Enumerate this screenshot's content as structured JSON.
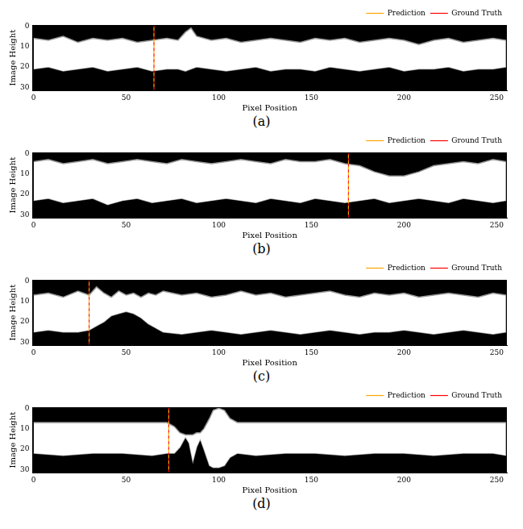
{
  "chart_data": [
    {
      "type": "band_image",
      "caption": "(a)",
      "x_label": "Pixel Position",
      "y_label": "Image Height",
      "color": "#ffffff",
      "legend": "top",
      "grid": false,
      "xlim": [
        -0.5,
        255.5
      ],
      "xticks": [
        0,
        50,
        100,
        150,
        200,
        250
      ],
      "ylim": [
        31.5,
        -0.5
      ],
      "yticks": [
        0,
        10,
        20,
        30
      ],
      "x": [
        0,
        8,
        16,
        24,
        32,
        40,
        48,
        56,
        64,
        72,
        78,
        82,
        85,
        88,
        96,
        104,
        112,
        120,
        128,
        136,
        144,
        152,
        160,
        168,
        176,
        184,
        192,
        200,
        208,
        216,
        224,
        232,
        240,
        248,
        255
      ],
      "band_top": [
        6,
        7,
        5,
        8,
        6,
        7,
        6,
        8,
        7,
        6,
        7,
        3,
        1,
        5,
        7,
        6,
        8,
        7,
        6,
        7,
        8,
        6,
        7,
        6,
        8,
        7,
        6,
        7,
        9,
        7,
        6,
        8,
        7,
        6,
        7
      ],
      "band_bottom": [
        21,
        20,
        22,
        21,
        20,
        22,
        21,
        20,
        22,
        21,
        21,
        22,
        21,
        20,
        21,
        22,
        21,
        20,
        22,
        21,
        21,
        22,
        20,
        21,
        22,
        21,
        20,
        22,
        21,
        21,
        20,
        22,
        21,
        21,
        20
      ],
      "vlines": [
        {
          "name": "Ground Truth",
          "color": "#ff0000",
          "line_style": "dashed",
          "x": 65
        },
        {
          "name": "Prediction",
          "color": "#ffa500",
          "line_style": "dashed",
          "x": 65
        }
      ]
    },
    {
      "type": "band_image",
      "caption": "(b)",
      "x_label": "Pixel Position",
      "y_label": "Image Height",
      "color": "#ffffff",
      "legend": "top",
      "grid": false,
      "xlim": [
        -0.5,
        255.5
      ],
      "xticks": [
        0,
        50,
        100,
        150,
        200,
        250
      ],
      "ylim": [
        31.5,
        -0.5
      ],
      "yticks": [
        0,
        10,
        20,
        30
      ],
      "x": [
        0,
        8,
        16,
        24,
        32,
        40,
        48,
        56,
        64,
        72,
        80,
        88,
        96,
        104,
        112,
        120,
        128,
        136,
        144,
        152,
        160,
        168,
        176,
        184,
        192,
        200,
        208,
        216,
        224,
        232,
        240,
        248,
        255
      ],
      "band_top": [
        4,
        3,
        5,
        4,
        3,
        5,
        4,
        3,
        4,
        5,
        3,
        4,
        5,
        4,
        3,
        4,
        5,
        3,
        4,
        4,
        3,
        5,
        6,
        9,
        11,
        11,
        9,
        6,
        5,
        4,
        5,
        3,
        4
      ],
      "band_bottom": [
        23,
        22,
        24,
        23,
        22,
        25,
        23,
        22,
        24,
        23,
        22,
        24,
        23,
        22,
        23,
        24,
        22,
        23,
        24,
        22,
        23,
        24,
        23,
        22,
        24,
        23,
        22,
        23,
        24,
        22,
        23,
        24,
        23
      ],
      "vlines": [
        {
          "name": "Ground Truth",
          "color": "#ff0000",
          "line_style": "dashed",
          "x": 170
        },
        {
          "name": "Prediction",
          "color": "#ffa500",
          "line_style": "dashed",
          "x": 170
        }
      ]
    },
    {
      "type": "band_image",
      "caption": "(c)",
      "x_label": "Pixel Position",
      "y_label": "Image Height",
      "color": "#ffffff",
      "legend": "top",
      "grid": false,
      "xlim": [
        -0.5,
        255.5
      ],
      "xticks": [
        0,
        50,
        100,
        150,
        200,
        250
      ],
      "ylim": [
        31.5,
        -0.5
      ],
      "yticks": [
        0,
        10,
        20,
        30
      ],
      "x": [
        0,
        8,
        16,
        24,
        30,
        34,
        38,
        42,
        46,
        50,
        54,
        58,
        62,
        66,
        70,
        80,
        88,
        96,
        104,
        112,
        120,
        128,
        136,
        144,
        152,
        160,
        168,
        176,
        184,
        192,
        200,
        208,
        216,
        224,
        232,
        240,
        248,
        255
      ],
      "band_top": [
        7,
        6,
        8,
        5,
        7,
        3,
        6,
        8,
        5,
        7,
        6,
        8,
        6,
        7,
        5,
        7,
        6,
        8,
        7,
        5,
        7,
        6,
        8,
        7,
        6,
        5,
        7,
        8,
        6,
        7,
        6,
        8,
        7,
        6,
        7,
        8,
        6,
        7
      ],
      "band_bottom": [
        25,
        24,
        25,
        25,
        24,
        22,
        20,
        17,
        16,
        15,
        16,
        18,
        21,
        23,
        25,
        26,
        25,
        24,
        25,
        26,
        25,
        24,
        25,
        26,
        25,
        24,
        25,
        26,
        25,
        25,
        24,
        25,
        26,
        25,
        24,
        25,
        26,
        25
      ],
      "vlines": [
        {
          "name": "Ground Truth",
          "color": "#ff0000",
          "line_style": "dashed",
          "x": 30
        },
        {
          "name": "Prediction",
          "color": "#ffa500",
          "line_style": "dashed",
          "x": 30
        }
      ]
    },
    {
      "type": "band_image",
      "caption": "(d)",
      "x_label": "Pixel Position",
      "y_label": "Image Height",
      "color": "#ffffff",
      "legend": "top",
      "grid": false,
      "xlim": [
        -0.5,
        255.5
      ],
      "xticks": [
        0,
        50,
        100,
        150,
        200,
        250
      ],
      "ylim": [
        31.5,
        -0.5
      ],
      "yticks": [
        0,
        10,
        20,
        30
      ],
      "x": [
        0,
        16,
        32,
        48,
        64,
        72,
        76,
        79,
        82,
        84,
        86,
        88,
        90,
        92,
        95,
        97,
        100,
        103,
        106,
        110,
        120,
        136,
        152,
        168,
        184,
        200,
        216,
        232,
        248,
        255
      ],
      "band_top": [
        7,
        7,
        7,
        7,
        7,
        7,
        9,
        12,
        13,
        13,
        13,
        12,
        12,
        10,
        5,
        1,
        0,
        1,
        5,
        7,
        7,
        7,
        7,
        7,
        7,
        7,
        7,
        7,
        7,
        7
      ],
      "band_bottom": [
        22,
        23,
        22,
        22,
        23,
        22,
        22,
        19,
        14,
        17,
        26,
        19,
        15,
        20,
        28,
        29,
        29,
        28,
        24,
        22,
        23,
        22,
        22,
        23,
        22,
        22,
        23,
        22,
        22,
        23
      ],
      "vlines": [
        {
          "name": "Ground Truth",
          "color": "#ff0000",
          "line_style": "dashed",
          "x": 73
        },
        {
          "name": "Prediction",
          "color": "#ffa500",
          "line_style": "dashed",
          "x": 73
        }
      ]
    }
  ]
}
